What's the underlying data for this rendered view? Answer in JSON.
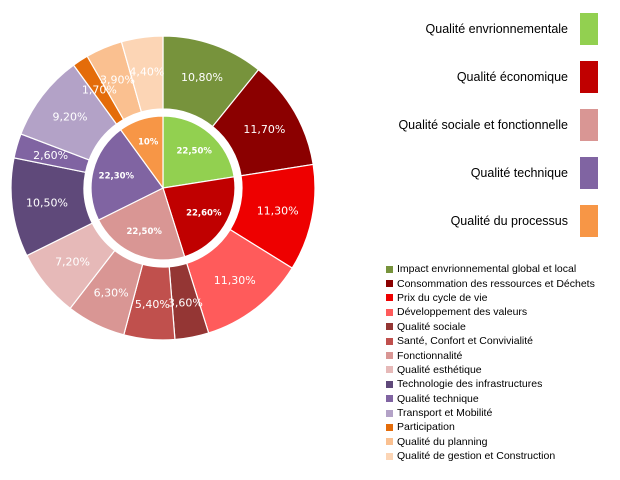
{
  "chart_data": {
    "type": "pie",
    "subtype": "nested-donut",
    "title": "",
    "inner": {
      "categories": [
        "Qualité envrionnementale",
        "Qualité économique",
        "Qualité sociale et fonctionnelle",
        "Qualité technique",
        "Qualité du processus"
      ],
      "values": [
        22.5,
        22.6,
        22.5,
        22.3,
        10.0
      ],
      "labels": [
        "22,50%",
        "22,60%",
        "22,50%",
        "22,30%",
        "10%"
      ],
      "colors": [
        "#92d050",
        "#c00000",
        "#d99694",
        "#8064a2",
        "#f79646"
      ]
    },
    "outer": {
      "categories": [
        "Impact envrionnemental global et local",
        "Consommation des ressources et Déchets",
        "Prix du cycle de vie",
        "Développement des valeurs",
        "Qualité sociale",
        "Santé, Confort et Convivialité",
        "Fonctionnalité",
        "Qualité esthétique",
        "Technologie des infrastructures",
        "Qualité technique",
        "Transport et Mobilité",
        "Participation",
        "Qualité du planning",
        "Qualité de gestion et Construction"
      ],
      "values": [
        10.8,
        11.7,
        11.3,
        11.3,
        3.6,
        5.4,
        6.3,
        7.2,
        10.5,
        2.6,
        9.2,
        1.7,
        3.9,
        4.4
      ],
      "labels": [
        "10,80%",
        "11,70%",
        "11,30%",
        "11,30%",
        "3,60%",
        "5,40%",
        "6,30%",
        "7,20%",
        "10,50%",
        "2,60%",
        "9,20%",
        "1,70%",
        "3,90%",
        "4,40%"
      ],
      "colors": [
        "#77933c",
        "#8b0000",
        "#ee0000",
        "#ff5b5b",
        "#943634",
        "#c0504d",
        "#d99694",
        "#e6b9b8",
        "#5f497a",
        "#8064a2",
        "#b3a2c7",
        "#e46c0a",
        "#fac090",
        "#fcd5b5"
      ]
    },
    "legend_position": "right"
  }
}
